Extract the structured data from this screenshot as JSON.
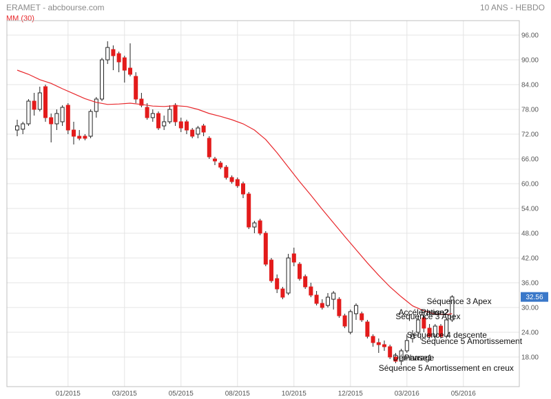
{
  "header": {
    "title": "ERAMET - abcbourse.com",
    "period": "10 ANS - HEBDO"
  },
  "legend": {
    "ma_label": "MM (30)"
  },
  "colors": {
    "up": "#ffffff",
    "down": "#e31b1b",
    "wick": "#222222",
    "ma": "#e8262a",
    "grid": "#e4e4e4",
    "last": "#3a78c9"
  },
  "chart_data": {
    "type": "candlestick",
    "x_ticks": [
      "01/2015",
      "03/2015",
      "05/2015",
      "08/2015",
      "10/2015",
      "12/2015",
      "03/2016",
      "05/2016"
    ],
    "x_tick_index": [
      9,
      19,
      29,
      39,
      49,
      59,
      69,
      79
    ],
    "y_ticks": [
      18,
      24,
      30,
      36,
      42,
      48,
      54,
      60,
      66,
      72,
      78,
      84,
      90,
      96
    ],
    "ylim": [
      14,
      98
    ],
    "last_value": "32.56",
    "grid": true,
    "candles": [
      {
        "o": 73.0,
        "h": 75.5,
        "l": 71.5,
        "c": 74.0
      },
      {
        "o": 73.2,
        "h": 75.0,
        "l": 72.0,
        "c": 74.5
      },
      {
        "o": 74.5,
        "h": 80.5,
        "l": 74.0,
        "c": 80.0
      },
      {
        "o": 80.0,
        "h": 82.0,
        "l": 76.5,
        "c": 78.0
      },
      {
        "o": 78.0,
        "h": 83.5,
        "l": 77.5,
        "c": 82.0
      },
      {
        "o": 83.5,
        "h": 84.0,
        "l": 75.0,
        "c": 76.0
      },
      {
        "o": 76.0,
        "h": 77.0,
        "l": 70.0,
        "c": 74.5
      },
      {
        "o": 74.5,
        "h": 78.0,
        "l": 73.0,
        "c": 77.0
      },
      {
        "o": 75.0,
        "h": 79.0,
        "l": 74.0,
        "c": 78.5
      },
      {
        "o": 79.0,
        "h": 79.5,
        "l": 72.0,
        "c": 73.0
      },
      {
        "o": 73.0,
        "h": 75.0,
        "l": 69.5,
        "c": 71.5
      },
      {
        "o": 71.5,
        "h": 73.0,
        "l": 70.5,
        "c": 71.0
      },
      {
        "o": 71.5,
        "h": 72.0,
        "l": 70.5,
        "c": 71.0
      },
      {
        "o": 71.5,
        "h": 78.0,
        "l": 71.0,
        "c": 77.5
      },
      {
        "o": 77.5,
        "h": 81.0,
        "l": 76.0,
        "c": 80.5
      },
      {
        "o": 80.5,
        "h": 90.5,
        "l": 80.0,
        "c": 90.0
      },
      {
        "o": 90.0,
        "h": 94.5,
        "l": 89.0,
        "c": 93.0
      },
      {
        "o": 92.5,
        "h": 93.5,
        "l": 87.5,
        "c": 91.0
      },
      {
        "o": 91.5,
        "h": 92.0,
        "l": 87.0,
        "c": 89.5
      },
      {
        "o": 90.5,
        "h": 91.0,
        "l": 84.5,
        "c": 87.5
      },
      {
        "o": 88.0,
        "h": 94.0,
        "l": 86.0,
        "c": 86.5
      },
      {
        "o": 86.0,
        "h": 87.0,
        "l": 79.5,
        "c": 80.5
      },
      {
        "o": 80.5,
        "h": 82.0,
        "l": 78.5,
        "c": 79.0
      },
      {
        "o": 78.5,
        "h": 79.5,
        "l": 75.5,
        "c": 76.0
      },
      {
        "o": 76.0,
        "h": 78.0,
        "l": 75.0,
        "c": 77.0
      },
      {
        "o": 77.0,
        "h": 77.5,
        "l": 73.0,
        "c": 73.5
      },
      {
        "o": 74.0,
        "h": 76.5,
        "l": 73.0,
        "c": 75.0
      },
      {
        "o": 75.0,
        "h": 79.0,
        "l": 74.5,
        "c": 78.0
      },
      {
        "o": 79.0,
        "h": 79.5,
        "l": 74.0,
        "c": 75.0
      },
      {
        "o": 75.0,
        "h": 76.0,
        "l": 72.5,
        "c": 73.5
      },
      {
        "o": 75.0,
        "h": 75.5,
        "l": 72.0,
        "c": 73.0
      },
      {
        "o": 73.0,
        "h": 73.5,
        "l": 71.0,
        "c": 71.5
      },
      {
        "o": 72.0,
        "h": 74.0,
        "l": 71.0,
        "c": 73.5
      },
      {
        "o": 74.0,
        "h": 74.5,
        "l": 71.5,
        "c": 72.5
      },
      {
        "o": 71.0,
        "h": 71.5,
        "l": 66.0,
        "c": 66.5
      },
      {
        "o": 66.0,
        "h": 66.5,
        "l": 64.5,
        "c": 65.5
      },
      {
        "o": 65.0,
        "h": 65.5,
        "l": 63.5,
        "c": 64.0
      },
      {
        "o": 64.0,
        "h": 64.5,
        "l": 61.0,
        "c": 61.5
      },
      {
        "o": 61.5,
        "h": 62.0,
        "l": 60.0,
        "c": 60.5
      },
      {
        "o": 61.0,
        "h": 61.5,
        "l": 59.0,
        "c": 59.5
      },
      {
        "o": 60.0,
        "h": 60.5,
        "l": 56.5,
        "c": 57.5
      },
      {
        "o": 57.5,
        "h": 58.0,
        "l": 49.0,
        "c": 49.5
      },
      {
        "o": 49.5,
        "h": 51.0,
        "l": 48.0,
        "c": 50.5
      },
      {
        "o": 51.0,
        "h": 51.5,
        "l": 47.5,
        "c": 48.0
      },
      {
        "o": 48.0,
        "h": 48.5,
        "l": 40.0,
        "c": 40.5
      },
      {
        "o": 41.5,
        "h": 42.0,
        "l": 36.0,
        "c": 36.5
      },
      {
        "o": 37.0,
        "h": 38.0,
        "l": 33.5,
        "c": 34.5
      },
      {
        "o": 34.5,
        "h": 35.0,
        "l": 32.0,
        "c": 32.5
      },
      {
        "o": 33.5,
        "h": 43.0,
        "l": 33.0,
        "c": 42.0
      },
      {
        "o": 43.0,
        "h": 44.5,
        "l": 40.0,
        "c": 41.0
      },
      {
        "o": 40.5,
        "h": 41.0,
        "l": 36.5,
        "c": 37.0
      },
      {
        "o": 37.5,
        "h": 38.0,
        "l": 34.5,
        "c": 35.0
      },
      {
        "o": 35.0,
        "h": 36.0,
        "l": 32.5,
        "c": 33.0
      },
      {
        "o": 33.0,
        "h": 34.0,
        "l": 30.5,
        "c": 31.0
      },
      {
        "o": 31.0,
        "h": 32.0,
        "l": 29.5,
        "c": 30.0
      },
      {
        "o": 30.5,
        "h": 33.5,
        "l": 30.0,
        "c": 32.5
      },
      {
        "o": 32.0,
        "h": 34.0,
        "l": 29.5,
        "c": 33.5
      },
      {
        "o": 32.0,
        "h": 32.5,
        "l": 27.5,
        "c": 28.0
      },
      {
        "o": 28.0,
        "h": 28.5,
        "l": 25.0,
        "c": 25.5
      },
      {
        "o": 24.0,
        "h": 29.5,
        "l": 23.5,
        "c": 29.0
      },
      {
        "o": 28.5,
        "h": 31.0,
        "l": 27.0,
        "c": 30.5
      },
      {
        "o": 28.5,
        "h": 29.0,
        "l": 26.5,
        "c": 27.0
      },
      {
        "o": 26.5,
        "h": 27.0,
        "l": 22.5,
        "c": 23.0
      },
      {
        "o": 23.0,
        "h": 23.5,
        "l": 20.5,
        "c": 21.5
      },
      {
        "o": 21.5,
        "h": 22.5,
        "l": 19.0,
        "c": 21.0
      },
      {
        "o": 21.0,
        "h": 22.0,
        "l": 19.5,
        "c": 20.5
      },
      {
        "o": 20.5,
        "h": 21.0,
        "l": 17.5,
        "c": 18.0
      },
      {
        "o": 18.0,
        "h": 19.0,
        "l": 16.5,
        "c": 17.0
      },
      {
        "o": 17.0,
        "h": 20.0,
        "l": 16.0,
        "c": 19.5
      },
      {
        "o": 19.5,
        "h": 23.5,
        "l": 19.0,
        "c": 22.0
      },
      {
        "o": 22.5,
        "h": 24.5,
        "l": 21.5,
        "c": 23.5
      },
      {
        "o": 24.0,
        "h": 28.0,
        "l": 23.0,
        "c": 27.0
      },
      {
        "o": 27.5,
        "h": 28.5,
        "l": 24.0,
        "c": 25.0
      },
      {
        "o": 25.0,
        "h": 26.0,
        "l": 22.5,
        "c": 23.0
      },
      {
        "o": 23.0,
        "h": 26.0,
        "l": 22.0,
        "c": 25.5
      },
      {
        "o": 25.5,
        "h": 26.0,
        "l": 22.5,
        "c": 23.0
      },
      {
        "o": 23.0,
        "h": 27.5,
        "l": 22.5,
        "c": 27.0
      },
      {
        "o": 27.0,
        "h": 33.0,
        "l": 26.5,
        "c": 32.56
      }
    ],
    "series": [
      {
        "name": "MM (30)",
        "points": [
          [
            0,
            87.5
          ],
          [
            2,
            86.5
          ],
          [
            4,
            85.2
          ],
          [
            6,
            84.3
          ],
          [
            8,
            83.0
          ],
          [
            10,
            81.8
          ],
          [
            12,
            80.6
          ],
          [
            14,
            79.7
          ],
          [
            16,
            79.2
          ],
          [
            18,
            79.3
          ],
          [
            20,
            79.5
          ],
          [
            22,
            79.2
          ],
          [
            24,
            78.8
          ],
          [
            26,
            78.7
          ],
          [
            28,
            78.9
          ],
          [
            30,
            78.7
          ],
          [
            32,
            78.0
          ],
          [
            34,
            77.0
          ],
          [
            36,
            76.3
          ],
          [
            38,
            75.5
          ],
          [
            40,
            74.5
          ],
          [
            42,
            73.0
          ],
          [
            44,
            70.7
          ],
          [
            46,
            67.5
          ],
          [
            48,
            64.0
          ],
          [
            50,
            60.5
          ],
          [
            52,
            57.2
          ],
          [
            54,
            53.8
          ],
          [
            56,
            50.5
          ],
          [
            58,
            47.2
          ],
          [
            60,
            44.0
          ],
          [
            62,
            40.8
          ],
          [
            64,
            37.8
          ],
          [
            66,
            35.0
          ],
          [
            68,
            32.6
          ],
          [
            70,
            30.4
          ],
          [
            72,
            29.2
          ],
          [
            74,
            28.4
          ],
          [
            76,
            28.3
          ],
          [
            77,
            28.5
          ]
        ]
      }
    ],
    "annotations": [
      {
        "text": "Séquence 3 Apex",
        "x": 72.5,
        "y": 30.8
      },
      {
        "text": "Accélération2",
        "x": 67.5,
        "y": 28.2
      },
      {
        "text": "Phase2",
        "x": 71.5,
        "y": 28.2
      },
      {
        "text": "Séquence 3 Apex",
        "x": 67.0,
        "y": 27.2
      },
      {
        "text": "Séquence 4 descente",
        "x": 69.0,
        "y": 22.7
      },
      {
        "text": "Séquence 5 Amortissement",
        "x": 71.5,
        "y": 21.2
      },
      {
        "text": "Démarrage",
        "x": 66.5,
        "y": 17.2
      },
      {
        "text": "Phase1",
        "x": 68.5,
        "y": 17.2
      },
      {
        "text": "Séquence 5 Amortissement en creux",
        "x": 64.0,
        "y": 14.7
      }
    ]
  }
}
